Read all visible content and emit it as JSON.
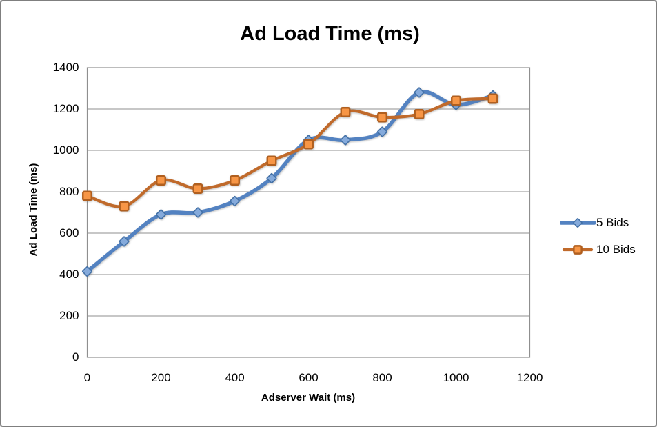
{
  "window": {
    "background": "#ffffff",
    "border_color": "#7f7f7f"
  },
  "chart_data": {
    "type": "line",
    "title": "Ad Load Time (ms)",
    "xlabel": "Adserver Wait (ms)",
    "ylabel": "Ad Load Time (ms)",
    "x": [
      0,
      100,
      200,
      300,
      400,
      500,
      600,
      700,
      800,
      900,
      1000,
      1100
    ],
    "series": [
      {
        "name": "5 Bids",
        "line_color": "#5382C1",
        "marker": "diamond",
        "marker_fill": "#85AADB",
        "marker_stroke": "#4270A6",
        "values": [
          415,
          560,
          690,
          700,
          755,
          865,
          1050,
          1050,
          1090,
          1280,
          1220,
          1265
        ]
      },
      {
        "name": "10 Bids",
        "line_color": "#C06A2B",
        "marker": "square",
        "marker_fill": "#F79646",
        "marker_stroke": "#B05F1F",
        "values": [
          780,
          730,
          855,
          815,
          855,
          950,
          1030,
          1185,
          1160,
          1175,
          1240,
          1250
        ]
      }
    ],
    "xlim": [
      0,
      1200
    ],
    "ylim": [
      0,
      1400
    ],
    "x_ticks": [
      0,
      200,
      400,
      600,
      800,
      1000,
      1200
    ],
    "y_ticks": [
      0,
      200,
      400,
      600,
      800,
      1000,
      1200,
      1400
    ],
    "grid": "horizontal-only",
    "grid_color": "#8f8f8f",
    "axis_text_color": "#000000",
    "legend_position": "right",
    "smoothed_lines": true
  }
}
